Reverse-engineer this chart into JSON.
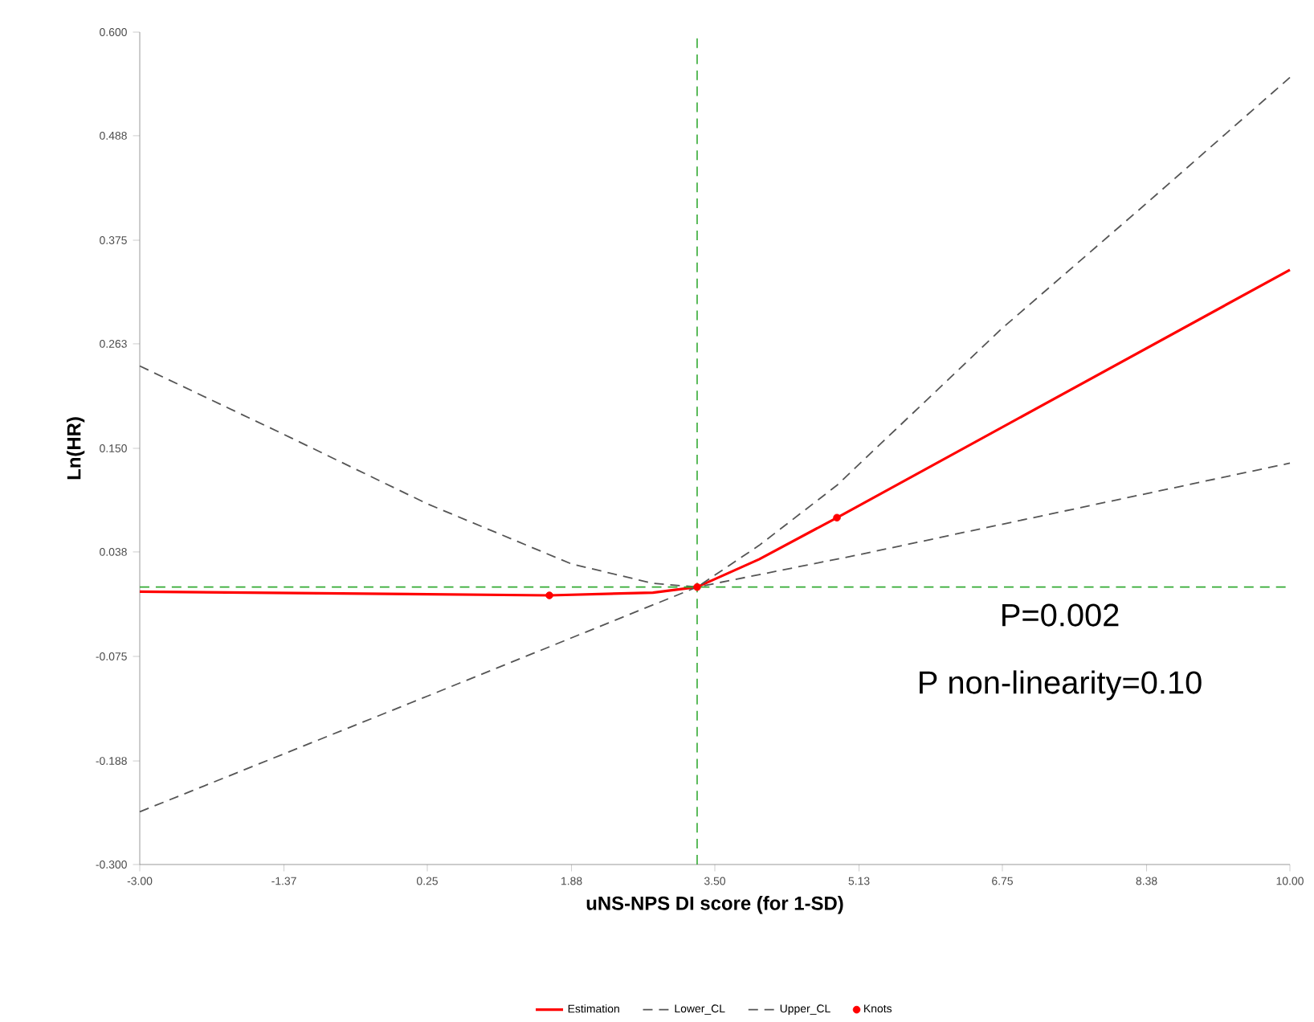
{
  "chart_data": {
    "type": "line",
    "xlabel": "uNS-NPS DI score (for 1-SD)",
    "ylabel": "Ln(HR)",
    "xlim": [
      -3.0,
      10.0
    ],
    "ylim": [
      -0.3,
      0.6
    ],
    "xticks": [
      {
        "value": -3.0,
        "label": "-3.00"
      },
      {
        "value": -1.37,
        "label": "-1.37"
      },
      {
        "value": 0.25,
        "label": "0.25"
      },
      {
        "value": 1.88,
        "label": "1.88"
      },
      {
        "value": 3.5,
        "label": "3.50"
      },
      {
        "value": 5.13,
        "label": "5.13"
      },
      {
        "value": 6.75,
        "label": "6.75"
      },
      {
        "value": 8.38,
        "label": "8.38"
      },
      {
        "value": 10.0,
        "label": "10.00"
      }
    ],
    "yticks": [
      {
        "value": -0.3,
        "label": "-0.300"
      },
      {
        "value": -0.188,
        "label": "-0.188"
      },
      {
        "value": -0.075,
        "label": "-0.075"
      },
      {
        "value": 0.038,
        "label": "0.038"
      },
      {
        "value": 0.15,
        "label": "0.150"
      },
      {
        "value": 0.263,
        "label": "0.263"
      },
      {
        "value": 0.375,
        "label": "0.375"
      },
      {
        "value": 0.488,
        "label": "0.488"
      },
      {
        "value": 0.6,
        "label": "0.600"
      }
    ],
    "grid": false,
    "legend": "bottom",
    "series": [
      {
        "name": "Estimation",
        "color": "#ff0000",
        "line_style": "solid",
        "x": [
          -3.0,
          1.63,
          2.8,
          3.3,
          4.0,
          4.88,
          10.0
        ],
        "values": [
          -0.005,
          -0.009,
          -0.006,
          0.0,
          0.03,
          0.075,
          0.343
        ]
      },
      {
        "name": "Lower_CL",
        "color": "#555555",
        "line_style": "dashed",
        "x": [
          -3.0,
          0.25,
          3.3,
          5.13,
          10.0
        ],
        "values": [
          -0.243,
          -0.118,
          0.0,
          0.035,
          0.134
        ]
      },
      {
        "name": "Upper_CL",
        "color": "#555555",
        "line_style": "dashed",
        "x": [
          -3.0,
          -1.37,
          0.25,
          1.88,
          2.8,
          3.3,
          4.0,
          4.88,
          6.75,
          8.38,
          10.0
        ],
        "values": [
          0.239,
          0.165,
          0.09,
          0.025,
          0.004,
          0.0,
          0.045,
          0.11,
          0.28,
          0.415,
          0.551
        ]
      },
      {
        "name": "Knots",
        "type": "scatter",
        "color": "#ff0000",
        "marker": "circle",
        "x": [
          1.63,
          3.3,
          4.88
        ],
        "values": [
          -0.009,
          0.0,
          0.075
        ]
      }
    ],
    "ref_lines": [
      {
        "axis": "x",
        "value": 3.3,
        "color": "#33aa33",
        "line_style": "dashed"
      },
      {
        "axis": "y",
        "value": 0.0,
        "color": "#33aa33",
        "line_style": "dashed"
      }
    ],
    "annotations": [
      "P=0.002",
      "P non-linearity=0.10"
    ]
  }
}
